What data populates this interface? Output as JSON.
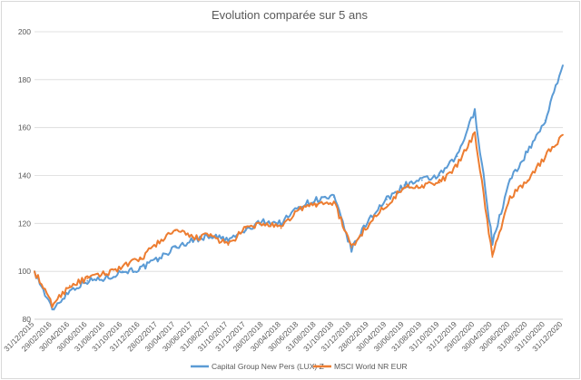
{
  "chart_data": {
    "type": "line",
    "title": "Evolution comparée sur 5 ans",
    "xlabel": "",
    "ylabel": "",
    "ylim": [
      80,
      200
    ],
    "yticks": [
      80,
      100,
      120,
      140,
      160,
      180,
      200
    ],
    "grid": true,
    "legend_position": "bottom",
    "x_ticks": [
      "31/12/2015",
      "29/02/2016",
      "30/04/2016",
      "30/06/2016",
      "31/08/2016",
      "31/10/2016",
      "31/12/2016",
      "28/02/2017",
      "30/04/2017",
      "30/06/2017",
      "31/08/2017",
      "31/10/2017",
      "31/12/2017",
      "28/02/2018",
      "30/04/2018",
      "30/06/2018",
      "31/08/2018",
      "31/10/2018",
      "31/12/2018",
      "28/02/2019",
      "30/04/2019",
      "30/06/2019",
      "31/08/2019",
      "31/10/2019",
      "31/12/2019",
      "29/02/2020",
      "30/04/2020",
      "30/06/2020",
      "31/08/2020",
      "31/10/2020",
      "31/12/2020"
    ],
    "series": [
      {
        "name": "Capital Group New Pers (LUX) Z",
        "color": "#5b9bd5",
        "values": [
          100,
          84,
          92,
          96,
          97,
          100,
          101,
          105,
          110,
          113,
          115,
          113,
          117,
          121,
          120,
          127,
          130,
          131,
          109,
          122,
          130,
          136,
          138,
          140,
          148,
          167,
          112,
          138,
          150,
          163,
          186
        ]
      },
      {
        "name": "MSCI World NR EUR",
        "color": "#ed7d31",
        "values": [
          100,
          86,
          94,
          97,
          99,
          102,
          105,
          112,
          117,
          114,
          115,
          111,
          118,
          120,
          118,
          126,
          128,
          129,
          110,
          120,
          128,
          135,
          136,
          137,
          144,
          158,
          106,
          131,
          138,
          148,
          157
        ]
      }
    ]
  }
}
